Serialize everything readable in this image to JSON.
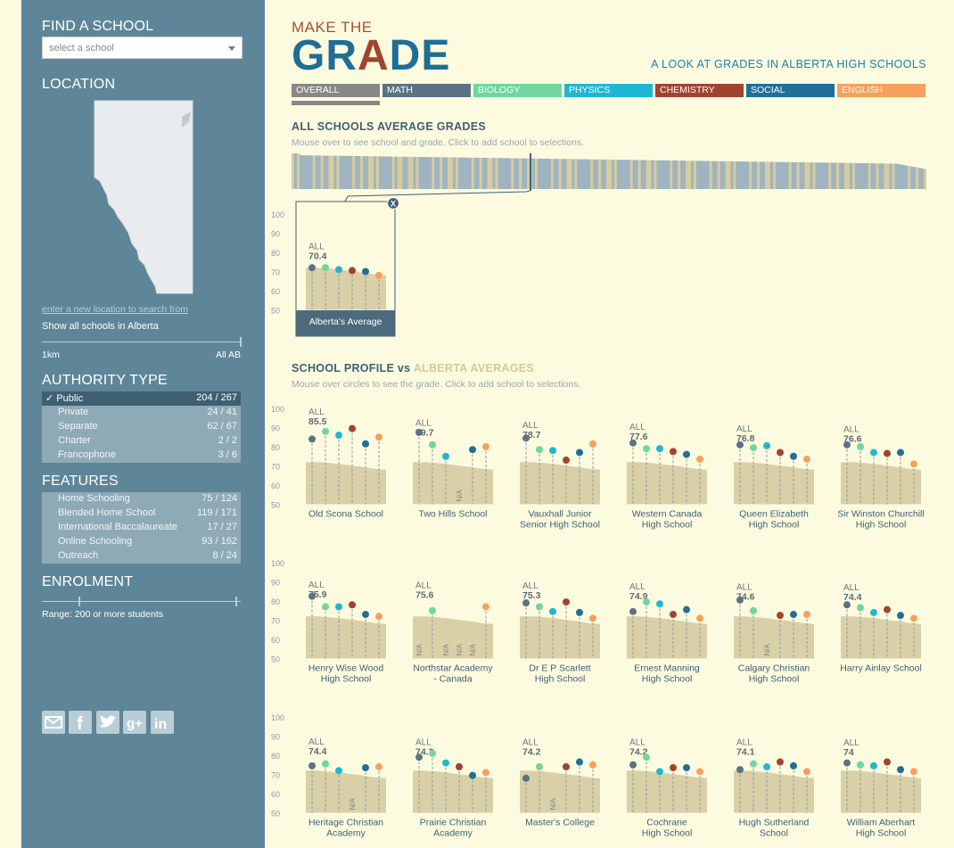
{
  "sidebar": {
    "find_heading": "FIND A SCHOOL",
    "select_placeholder": "select a school",
    "location_heading": "LOCATION",
    "location_link": "enter a new location to search from",
    "show_all": "Show all schools in Alberta",
    "range_min": "1km",
    "range_max": "All AB",
    "authority_heading": "AUTHORITY TYPE",
    "authority": [
      {
        "label": "Public",
        "count": "204 / 267",
        "selected": true
      },
      {
        "label": "Private",
        "count": "24 / 41",
        "selected": false
      },
      {
        "label": "Separate",
        "count": "62 / 67",
        "selected": false
      },
      {
        "label": "Charter",
        "count": "2 / 2",
        "selected": false
      },
      {
        "label": "Francophone",
        "count": "3 / 6",
        "selected": false
      }
    ],
    "check_mark": "✓",
    "features_heading": "FEATURES",
    "features": [
      {
        "label": "Home Schooling",
        "count": "75 / 124"
      },
      {
        "label": "Blended Home School",
        "count": "119 / 171"
      },
      {
        "label": "International Baccalaureate",
        "count": "17 / 27"
      },
      {
        "label": "Online Schooling",
        "count": "93 / 162"
      },
      {
        "label": "Outreach",
        "count": "8 / 24"
      }
    ],
    "enrolment_heading": "ENROLMENT",
    "enrolment_range": "Range: 200 or more students",
    "social_icons": [
      "mail-icon",
      "facebook-icon",
      "twitter-icon",
      "google-plus-icon",
      "linkedin-icon"
    ]
  },
  "header": {
    "small_title": "MAKE THE",
    "big_title_1": "GR",
    "big_title_2": "A",
    "big_title_3": "DE",
    "subtitle": "A LOOK AT GRADES IN ALBERTA HIGH SCHOOLS"
  },
  "subjects": [
    {
      "label": "OVERALL",
      "color": "#888888"
    },
    {
      "label": "MATH",
      "color": "#5b7385"
    },
    {
      "label": "BIOLOGY",
      "color": "#6fd6a0"
    },
    {
      "label": "PHYSICS",
      "color": "#1db7d4"
    },
    {
      "label": "CHEMISTRY",
      "color": "#a0432f"
    },
    {
      "label": "SOCIAL",
      "color": "#1f6f98"
    },
    {
      "label": "ENGLISH",
      "color": "#f7a05e"
    }
  ],
  "all_schools": {
    "title": "ALL SCHOOLS AVERAGE GRADES",
    "hint": "Mouse over to see school and grade. Click to add school to selections."
  },
  "axis_ticks": [
    "100",
    "90",
    "80",
    "70",
    "60",
    "50"
  ],
  "all_label": "ALL",
  "na_label": "N/A",
  "close_label": "X",
  "alberta_avg": {
    "name": "Alberta's Average",
    "overall": "70.4",
    "grades": [
      72,
      72,
      71,
      70.5,
      70,
      68
    ]
  },
  "profile": {
    "title_1": "SCHOOL PROFILE",
    "title_vs": " vs ",
    "title_2": "ALBERTA AVERAGES",
    "hint": "Mouse over circles to see the grade. Click to add school to selections."
  },
  "schools": [
    {
      "name1": "Old Scona School",
      "name2": "",
      "overall": "85.5",
      "grades": [
        84,
        88,
        86,
        89.5,
        81.5,
        85
      ]
    },
    {
      "name1": "Two Hills School",
      "name2": "",
      "overall": "79.7",
      "grades": [
        87.5,
        81,
        75,
        null,
        78.5,
        80
      ]
    },
    {
      "name1": "Vauxhall Junior",
      "name2": "Senior High School",
      "overall": "78.7",
      "grades": [
        84.5,
        78.5,
        78,
        73,
        77,
        81.5
      ]
    },
    {
      "name1": "Western Canada",
      "name2": "High School",
      "overall": "77.6",
      "grades": [
        82,
        79,
        79,
        77.5,
        76,
        73.5
      ]
    },
    {
      "name1": "Queen Elizabeth",
      "name2": "High School",
      "overall": "76.8",
      "grades": [
        81,
        79.5,
        80.5,
        77,
        75,
        73.5
      ]
    },
    {
      "name1": "Sir Winston Churchill",
      "name2": "High School",
      "overall": "76.6",
      "grades": [
        81,
        80,
        77,
        76.5,
        77,
        71
      ]
    },
    {
      "name1": "Henry Wise Wood",
      "name2": "High School",
      "overall": "75.9",
      "grades": [
        82.5,
        77,
        77,
        78,
        73,
        72
      ]
    },
    {
      "name1": "Northstar Academy",
      "name2": "- Canada",
      "overall": "75.6",
      "grades": [
        null,
        75,
        null,
        null,
        null,
        77
      ]
    },
    {
      "name1": "Dr E P Scarlett",
      "name2": "High School",
      "overall": "75.3",
      "grades": [
        79,
        77,
        74.5,
        79.5,
        74,
        71
      ]
    },
    {
      "name1": "Ernest Manning",
      "name2": "High School",
      "overall": "74.9",
      "grades": [
        74.5,
        79.5,
        78.5,
        73,
        75.5,
        71
      ]
    },
    {
      "name1": "Calgary Christian",
      "name2": "High School",
      "overall": "74.6",
      "grades": [
        80.5,
        75,
        null,
        72.5,
        73,
        73
      ]
    },
    {
      "name1": "Harry Ainlay School",
      "name2": "",
      "overall": "74.4",
      "grades": [
        78,
        76.5,
        74,
        75.5,
        72.5,
        71
      ]
    },
    {
      "name1": "Heritage Christian",
      "name2": "Academy",
      "overall": "74.4",
      "grades": [
        74.5,
        75.5,
        72,
        null,
        73.5,
        74
      ]
    },
    {
      "name1": "Prairie Christian",
      "name2": "Academy",
      "overall": "74.3",
      "grades": [
        79,
        81,
        76,
        74,
        69.5,
        71
      ]
    },
    {
      "name1": "Master's College",
      "name2": "",
      "overall": "74.2",
      "grades": [
        68,
        74,
        null,
        74,
        76.5,
        75
      ]
    },
    {
      "name1": "Cochrane",
      "name2": "High School",
      "overall": "74.2",
      "grades": [
        75,
        79,
        71.5,
        73.5,
        73.5,
        71.5
      ]
    },
    {
      "name1": "Hugh Sutherland",
      "name2": "School",
      "overall": "74.1",
      "grades": [
        72.5,
        75.5,
        74,
        76.5,
        74.5,
        71.5
      ]
    },
    {
      "name1": "William Aberhart",
      "name2": "High School",
      "overall": "74.0",
      "grades": [
        76,
        75,
        74.5,
        76.5,
        72.5,
        71.5
      ]
    }
  ]
}
